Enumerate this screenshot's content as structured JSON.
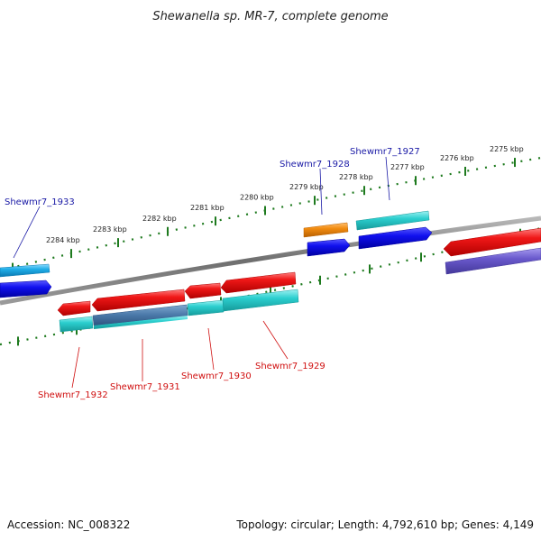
{
  "title": "Shewanella sp. MR-7, complete genome",
  "accession": "Accession: NC_008322",
  "summary": "Topology: circular; Length: 4,792,610 bp; Genes: 4,149",
  "ticks": [
    "2284 kbp",
    "2283 kbp",
    "2282 kbp",
    "2281 kbp",
    "2280 kbp",
    "2279 kbp",
    "2278 kbp",
    "2277 kbp",
    "2276 kbp",
    "2275 kbp"
  ],
  "genes_top": [
    "Shewmr7_1933",
    "Shewmr7_1928",
    "Shewmr7_1927"
  ],
  "genes_bottom": [
    "Shewmr7_1932",
    "Shewmr7_1931",
    "Shewmr7_1930",
    "Shewmr7_1929"
  ],
  "colors": {
    "label_top": "#1a1aa6",
    "label_bottom": "#d01010",
    "forward_cds": "#0000ee",
    "forward_feature": "#1faee8",
    "reverse_cds": "#e81010",
    "reverse_feature": "#22c4c4",
    "misc_feature": "#f28c10",
    "region": "#6a5acd",
    "backbone": "#808080",
    "tick": "#1e7a1e"
  }
}
